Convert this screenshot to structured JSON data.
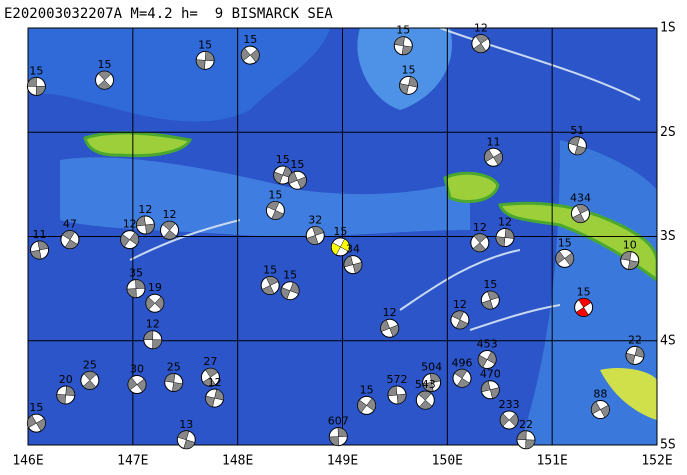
{
  "title": "E202003032207A M=4.2 h=  9 BISMARCK SEA",
  "xlim": [
    146,
    152
  ],
  "ylim": [
    1,
    5
  ],
  "xticks": [
    {
      "value": 146,
      "label": "146E"
    },
    {
      "value": 147,
      "label": "147E"
    },
    {
      "value": 148,
      "label": "148E"
    },
    {
      "value": 149,
      "label": "149E"
    },
    {
      "value": 150,
      "label": "150E"
    },
    {
      "value": 151,
      "label": "151E"
    },
    {
      "value": 152,
      "label": "152E"
    }
  ],
  "yticks": [
    {
      "value": 1,
      "label": "1S"
    },
    {
      "value": 2,
      "label": "2S"
    },
    {
      "value": 3,
      "label": "3S"
    },
    {
      "value": 4,
      "label": "4S"
    },
    {
      "value": 5,
      "label": "5S"
    }
  ],
  "events": [
    {
      "lon": 146.08,
      "lat": 1.56,
      "depth": 15
    },
    {
      "lon": 146.73,
      "lat": 1.5,
      "depth": 15
    },
    {
      "lon": 147.69,
      "lat": 1.31,
      "depth": 15
    },
    {
      "lon": 148.12,
      "lat": 1.26,
      "depth": 15
    },
    {
      "lon": 149.58,
      "lat": 1.17,
      "depth": 15
    },
    {
      "lon": 150.32,
      "lat": 1.15,
      "depth": 12
    },
    {
      "lon": 149.63,
      "lat": 1.55,
      "depth": 15
    },
    {
      "lon": 150.44,
      "lat": 2.24,
      "depth": 11
    },
    {
      "lon": 151.24,
      "lat": 2.13,
      "depth": 51
    },
    {
      "lon": 151.27,
      "lat": 2.78,
      "depth": 434
    },
    {
      "lon": 148.43,
      "lat": 2.41,
      "depth": 15
    },
    {
      "lon": 148.57,
      "lat": 2.46,
      "depth": 15
    },
    {
      "lon": 148.36,
      "lat": 2.75,
      "depth": 15
    },
    {
      "lon": 148.74,
      "lat": 2.99,
      "depth": 32
    },
    {
      "lon": 148.98,
      "lat": 3.1,
      "depth": 15,
      "color": "#ffff00"
    },
    {
      "lon": 149.1,
      "lat": 3.27,
      "depth": 34
    },
    {
      "lon": 146.4,
      "lat": 3.03,
      "depth": 47
    },
    {
      "lon": 146.11,
      "lat": 3.13,
      "depth": 11
    },
    {
      "lon": 146.97,
      "lat": 3.03,
      "depth": 12
    },
    {
      "lon": 147.12,
      "lat": 2.89,
      "depth": 12
    },
    {
      "lon": 147.35,
      "lat": 2.94,
      "depth": 12
    },
    {
      "lon": 147.03,
      "lat": 3.5,
      "depth": 35
    },
    {
      "lon": 147.21,
      "lat": 3.64,
      "depth": 19
    },
    {
      "lon": 147.19,
      "lat": 3.99,
      "depth": 12
    },
    {
      "lon": 146.59,
      "lat": 4.38,
      "depth": 25
    },
    {
      "lon": 146.36,
      "lat": 4.52,
      "depth": 20
    },
    {
      "lon": 147.04,
      "lat": 4.42,
      "depth": 30
    },
    {
      "lon": 147.39,
      "lat": 4.4,
      "depth": 25
    },
    {
      "lon": 147.74,
      "lat": 4.35,
      "depth": 27
    },
    {
      "lon": 147.78,
      "lat": 4.55,
      "depth": 12
    },
    {
      "lon": 146.08,
      "lat": 4.79,
      "depth": 15
    },
    {
      "lon": 147.51,
      "lat": 4.95,
      "depth": 13
    },
    {
      "lon": 148.31,
      "lat": 3.47,
      "depth": 15
    },
    {
      "lon": 148.5,
      "lat": 3.52,
      "depth": 15
    },
    {
      "lon": 149.45,
      "lat": 3.88,
      "depth": 12
    },
    {
      "lon": 150.12,
      "lat": 3.8,
      "depth": 12
    },
    {
      "lon": 150.41,
      "lat": 3.61,
      "depth": 15
    },
    {
      "lon": 150.38,
      "lat": 4.18,
      "depth": 453
    },
    {
      "lon": 150.41,
      "lat": 4.47,
      "depth": 470
    },
    {
      "lon": 150.14,
      "lat": 4.36,
      "depth": 496
    },
    {
      "lon": 149.85,
      "lat": 4.4,
      "depth": 504
    },
    {
      "lon": 149.23,
      "lat": 4.62,
      "depth": 15
    },
    {
      "lon": 149.52,
      "lat": 4.52,
      "depth": 572
    },
    {
      "lon": 149.79,
      "lat": 4.57,
      "depth": 543
    },
    {
      "lon": 148.96,
      "lat": 4.92,
      "depth": 607
    },
    {
      "lon": 150.59,
      "lat": 4.76,
      "depth": 233
    },
    {
      "lon": 150.75,
      "lat": 4.95,
      "depth": 22
    },
    {
      "lon": 150.31,
      "lat": 3.06,
      "depth": 12
    },
    {
      "lon": 150.55,
      "lat": 3.01,
      "depth": 12
    },
    {
      "lon": 151.12,
      "lat": 3.21,
      "depth": 15
    },
    {
      "lon": 151.74,
      "lat": 3.23,
      "depth": 10
    },
    {
      "lon": 151.3,
      "lat": 3.68,
      "depth": 15,
      "color": "#ff0000"
    },
    {
      "lon": 151.79,
      "lat": 4.14,
      "depth": 22
    },
    {
      "lon": 151.46,
      "lat": 4.66,
      "depth": 88
    }
  ]
}
